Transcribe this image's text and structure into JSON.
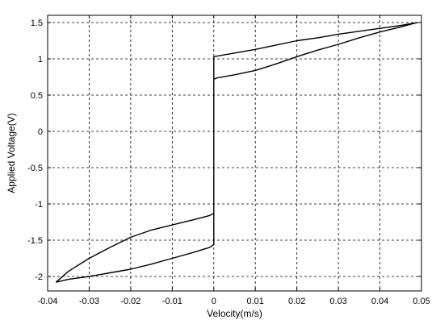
{
  "chart_data": {
    "type": "line",
    "title": "",
    "xlabel": "Velocity(m/s)",
    "ylabel": "Applied Voltage(V)",
    "xlim": [
      -0.04,
      0.05
    ],
    "ylim": [
      -2.2,
      1.6
    ],
    "xticks": [
      -0.04,
      -0.03,
      -0.02,
      -0.01,
      0,
      0.01,
      0.02,
      0.03,
      0.04,
      0.05
    ],
    "xtick_labels": [
      "-0.04",
      "-0.03",
      "-0.02",
      "-0.01",
      "0",
      "0.01",
      "0.02",
      "0.03",
      "0.04",
      "0.05"
    ],
    "yticks": [
      1.5,
      1,
      0.5,
      0,
      -0.5,
      -1,
      -1.5,
      -2
    ],
    "ytick_labels": [
      "1.5",
      "1",
      "0.5",
      "0",
      "-0.5",
      "-1",
      "-1.5",
      "-2"
    ],
    "grid": true,
    "grid_style": "dashed",
    "line_color": "#000000",
    "series": [
      {
        "x": [
          -0.038,
          -0.035,
          -0.03,
          -0.025,
          -0.02,
          -0.015,
          -0.01,
          -0.005,
          -0.001,
          0,
          0,
          0,
          0,
          0,
          0,
          0,
          0.001,
          0.005,
          0.01,
          0.015,
          0.02,
          0.025,
          0.03,
          0.035,
          0.04,
          0.045,
          0.049,
          0.045,
          0.04,
          0.035,
          0.03,
          0.025,
          0.02,
          0.015,
          0.01,
          0.005,
          0.001,
          0,
          0,
          0,
          0,
          0,
          0,
          -0.001,
          -0.005,
          -0.01,
          -0.015,
          -0.02,
          -0.025,
          -0.03,
          -0.035,
          -0.038
        ],
        "y": [
          -2.08,
          -2.04,
          -2.0,
          -1.95,
          -1.9,
          -1.83,
          -1.75,
          -1.67,
          -1.6,
          -1.56,
          -1.3,
          -1.0,
          -0.5,
          0,
          0.5,
          0.72,
          0.74,
          0.78,
          0.84,
          0.93,
          1.03,
          1.12,
          1.2,
          1.29,
          1.37,
          1.44,
          1.5,
          1.46,
          1.42,
          1.38,
          1.34,
          1.29,
          1.25,
          1.19,
          1.13,
          1.08,
          1.04,
          1.03,
          0.6,
          0.0,
          -0.6,
          -1.0,
          -1.13,
          -1.16,
          -1.22,
          -1.29,
          -1.36,
          -1.46,
          -1.6,
          -1.75,
          -1.93,
          -2.08
        ]
      }
    ]
  }
}
